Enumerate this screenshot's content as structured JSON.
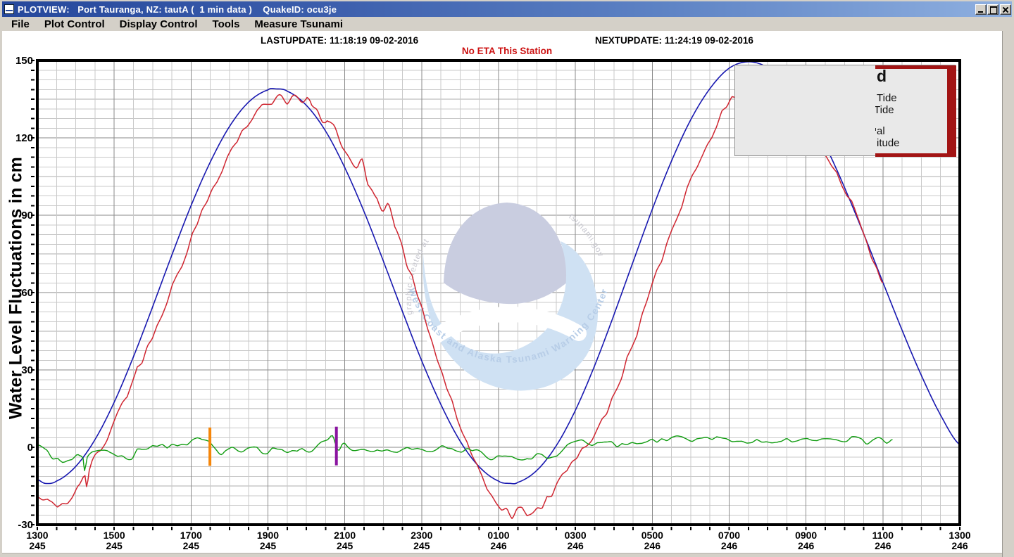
{
  "window": {
    "title": "PLOTVIEW:   Port Tauranga, NZ: tautA (  1 min data )    QuakeID: ocu3je",
    "buttons": {
      "minimize": "minimize",
      "maximize": "maximize",
      "close": "close"
    }
  },
  "menu": {
    "items": [
      "File",
      "Plot Control",
      "Display Control",
      "Tools",
      "Measure Tsunami"
    ]
  },
  "status": {
    "lastupdate": "LASTUPDATE: 11:18:19 09-02-2016",
    "nextupdate": "NEXTUPDATE: 11:24:19 09-02-2016",
    "eta": "No ETA This Station"
  },
  "chart_data": {
    "type": "line",
    "ylabel": "Water Level Fluctuations in cm",
    "ylim": [
      -30,
      150
    ],
    "y_ticks": [
      150,
      120,
      90,
      60,
      30,
      0,
      -30
    ],
    "x_hours_span": 24,
    "x_ticks": [
      {
        "time": "1300",
        "day": "245"
      },
      {
        "time": "1500",
        "day": "245"
      },
      {
        "time": "1700",
        "day": "245"
      },
      {
        "time": "1900",
        "day": "245"
      },
      {
        "time": "2100",
        "day": "245"
      },
      {
        "time": "2300",
        "day": "245"
      },
      {
        "time": "0100",
        "day": "246"
      },
      {
        "time": "0300",
        "day": "246"
      },
      {
        "time": "0500",
        "day": "246"
      },
      {
        "time": "0700",
        "day": "246"
      },
      {
        "time": "0900",
        "day": "246"
      },
      {
        "time": "1100",
        "day": "246"
      },
      {
        "time": "1300",
        "day": "246"
      }
    ],
    "grid": {
      "minor": "#c9c9c9",
      "medium": "#adadad",
      "major": "#8a8a8a",
      "border": "#000000"
    },
    "series": [
      {
        "name": "predicted-tide-curve",
        "color": "#1818b0",
        "width": 1.6,
        "noise_cm": 0,
        "points": [
          [
            0,
            -12.5
          ],
          [
            0.2,
            -14
          ],
          [
            0.5,
            -13.1
          ],
          [
            1,
            -7.4
          ],
          [
            1.5,
            3
          ],
          [
            2,
            17.5
          ],
          [
            2.5,
            35.1
          ],
          [
            3,
            54.5
          ],
          [
            3.5,
            74.5
          ],
          [
            4,
            93.7
          ],
          [
            4.5,
            110.6
          ],
          [
            5,
            124.4
          ],
          [
            5.5,
            133.9
          ],
          [
            6,
            138.6
          ],
          [
            6.2,
            139
          ],
          [
            6.5,
            138.1
          ],
          [
            7,
            132.6
          ],
          [
            7.5,
            122.6
          ],
          [
            8,
            108.4
          ],
          [
            8.5,
            91.4
          ],
          [
            9,
            72.3
          ],
          [
            9.5,
            52.7
          ],
          [
            10,
            33.6
          ],
          [
            10.5,
            16.6
          ],
          [
            11,
            2.4
          ],
          [
            11.5,
            -7.6
          ],
          [
            12,
            -13.1
          ],
          [
            12.3,
            -14
          ],
          [
            12.5,
            -13.6
          ],
          [
            13,
            -8.9
          ],
          [
            13.5,
            0.6
          ],
          [
            14,
            14.4
          ],
          [
            14.5,
            31.7
          ],
          [
            15,
            51.3
          ],
          [
            15.5,
            71.9
          ],
          [
            16,
            92.3
          ],
          [
            16.5,
            111
          ],
          [
            17,
            127
          ],
          [
            17.5,
            139.1
          ],
          [
            18,
            147
          ],
          [
            18.5,
            149.5
          ],
          [
            19,
            147.3
          ],
          [
            19.5,
            141
          ],
          [
            20,
            130.8
          ],
          [
            20.5,
            117.1
          ],
          [
            21,
            100.8
          ],
          [
            21.5,
            82.8
          ],
          [
            22,
            64
          ],
          [
            22.5,
            45.4
          ],
          [
            23,
            27.9
          ],
          [
            23.5,
            12.5
          ],
          [
            24,
            1
          ]
        ]
      },
      {
        "name": "observed-tide-curve",
        "color": "#cf2530",
        "width": 1.5,
        "noise_cm": 1.7,
        "points": [
          [
            0,
            -19.5
          ],
          [
            0.3,
            -21.5
          ],
          [
            0.6,
            -22
          ],
          [
            0.9,
            -20
          ],
          [
            1.1,
            -15
          ],
          [
            1.24,
            -10.5
          ],
          [
            1.28,
            -14.5
          ],
          [
            1.35,
            -9
          ],
          [
            1.5,
            -4
          ],
          [
            1.7,
            0.5
          ],
          [
            2,
            10
          ],
          [
            2.3,
            20
          ],
          [
            2.6,
            30
          ],
          [
            3,
            44
          ],
          [
            3.4,
            58
          ],
          [
            3.8,
            73
          ],
          [
            4.2,
            88
          ],
          [
            4.6,
            102
          ],
          [
            5,
            114
          ],
          [
            5.4,
            124
          ],
          [
            5.8,
            131
          ],
          [
            6.1,
            134
          ],
          [
            6.3,
            137.5
          ],
          [
            6.5,
            134.5
          ],
          [
            6.7,
            136
          ],
          [
            6.9,
            133
          ],
          [
            7.1,
            134.5
          ],
          [
            7.3,
            129
          ],
          [
            7.5,
            125
          ],
          [
            7.7,
            126.5
          ],
          [
            7.9,
            119
          ],
          [
            8.1,
            113
          ],
          [
            8.3,
            108
          ],
          [
            8.45,
            110.5
          ],
          [
            8.6,
            103
          ],
          [
            8.8,
            96
          ],
          [
            9,
            92
          ],
          [
            9.15,
            94
          ],
          [
            9.3,
            86
          ],
          [
            9.6,
            72
          ],
          [
            9.9,
            58
          ],
          [
            10.2,
            44
          ],
          [
            10.5,
            30
          ],
          [
            10.8,
            17
          ],
          [
            11.1,
            4
          ],
          [
            11.4,
            -7
          ],
          [
            11.7,
            -16
          ],
          [
            12,
            -22
          ],
          [
            12.2,
            -24
          ],
          [
            12.35,
            -27
          ],
          [
            12.5,
            -24.5
          ],
          [
            12.7,
            -25
          ],
          [
            12.9,
            -25.5
          ],
          [
            13.1,
            -23
          ],
          [
            13.3,
            -20
          ],
          [
            13.5,
            -15
          ],
          [
            13.7,
            -10
          ],
          [
            13.9,
            -5.5
          ],
          [
            14.1,
            -2
          ],
          [
            14.4,
            3
          ],
          [
            14.7,
            10
          ],
          [
            15,
            20
          ],
          [
            15.3,
            32
          ],
          [
            15.6,
            45
          ],
          [
            15.9,
            58
          ],
          [
            16.2,
            71
          ],
          [
            16.5,
            84
          ],
          [
            16.8,
            96
          ],
          [
            17.1,
            107
          ],
          [
            17.4,
            117
          ],
          [
            17.7,
            126
          ],
          [
            18,
            133
          ],
          [
            18.3,
            138
          ],
          [
            18.7,
            141
          ],
          [
            19,
            140.5
          ],
          [
            19.3,
            138
          ],
          [
            19.6,
            133.5
          ],
          [
            19.9,
            127
          ],
          [
            20.2,
            120.5
          ],
          [
            20.5,
            114
          ],
          [
            20.8,
            106
          ],
          [
            21.1,
            97.5
          ],
          [
            21.4,
            88
          ],
          [
            21.7,
            75
          ],
          [
            22,
            64.5
          ]
        ]
      },
      {
        "name": "residual-curve",
        "color": "#109c10",
        "width": 1.4,
        "noise_cm": 1.0,
        "points": [
          [
            0,
            0.5
          ],
          [
            0.2,
            -1.5
          ],
          [
            0.45,
            -4.5
          ],
          [
            0.7,
            -5
          ],
          [
            0.9,
            -4
          ],
          [
            1.1,
            -3.5
          ],
          [
            1.19,
            -3.8
          ],
          [
            1.23,
            -8.5
          ],
          [
            1.3,
            -3
          ],
          [
            1.5,
            -1.5
          ],
          [
            1.7,
            -1
          ],
          [
            1.9,
            -2
          ],
          [
            2.2,
            -3
          ],
          [
            2.45,
            -4
          ],
          [
            2.6,
            -1.5
          ],
          [
            2.8,
            -0.5
          ],
          [
            3,
            0
          ],
          [
            3.3,
            0.5
          ],
          [
            3.6,
            0.5
          ],
          [
            3.9,
            1
          ],
          [
            4.2,
            3
          ],
          [
            4.45,
            2
          ],
          [
            4.6,
            -0.5
          ],
          [
            4.75,
            -2.5
          ],
          [
            4.9,
            -1
          ],
          [
            5.1,
            -0.5
          ],
          [
            5.3,
            -1.5
          ],
          [
            5.6,
            -0.5
          ],
          [
            5.9,
            -1.8
          ],
          [
            6.2,
            -1
          ],
          [
            6.5,
            -2
          ],
          [
            6.8,
            -0.5
          ],
          [
            7.1,
            -1.5
          ],
          [
            7.35,
            1.5
          ],
          [
            7.55,
            2.5
          ],
          [
            7.68,
            5
          ],
          [
            7.78,
            1
          ],
          [
            7.85,
            -1
          ],
          [
            8,
            1.5
          ],
          [
            8.2,
            -1
          ],
          [
            8.5,
            -0.5
          ],
          [
            8.8,
            -1.5
          ],
          [
            9.1,
            -0.5
          ],
          [
            9.4,
            -1.2
          ],
          [
            9.7,
            -0.5
          ],
          [
            10,
            -0.6
          ],
          [
            10.3,
            -1
          ],
          [
            10.6,
            0
          ],
          [
            10.9,
            -1
          ],
          [
            11.2,
            -1
          ],
          [
            11.5,
            -2
          ],
          [
            11.8,
            -5
          ],
          [
            12.1,
            -3
          ],
          [
            12.4,
            -4.5
          ],
          [
            12.7,
            -5.5
          ],
          [
            13,
            -3.5
          ],
          [
            13.3,
            -4
          ],
          [
            13.6,
            -2.5
          ],
          [
            13.9,
            1.5
          ],
          [
            14.2,
            2.5
          ],
          [
            14.5,
            1
          ],
          [
            14.8,
            2
          ],
          [
            15.1,
            0.5
          ],
          [
            15.4,
            1
          ],
          [
            15.8,
            2.5
          ],
          [
            16.2,
            3
          ],
          [
            16.6,
            3.8
          ],
          [
            17,
            2.5
          ],
          [
            17.4,
            3.5
          ],
          [
            17.8,
            3
          ],
          [
            18.2,
            2
          ],
          [
            18.6,
            2.5
          ],
          [
            19,
            2
          ],
          [
            19.4,
            3
          ],
          [
            19.8,
            2.5
          ],
          [
            20.2,
            3
          ],
          [
            20.6,
            3.5
          ],
          [
            21,
            2.5
          ],
          [
            21.3,
            3.5
          ],
          [
            21.6,
            2
          ],
          [
            21.9,
            3
          ],
          [
            22.1,
            1.5
          ],
          [
            22.25,
            2.2
          ]
        ]
      }
    ],
    "markers": [
      {
        "name": "orange-time-marker",
        "color": "#f5860a",
        "t": 4.49,
        "v_range": [
          -7.2,
          7.7
        ]
      },
      {
        "name": "purple-time-marker",
        "color": "#8a14a0",
        "t": 7.78,
        "v_range": [
          -7,
          8
        ]
      }
    ],
    "legend": {
      "fragments": [
        "d",
        "Tide",
        "Tide",
        "al",
        "itude"
      ],
      "bg": "#e9e9e9",
      "accent": "#a21414"
    },
    "watermark": {
      "arc_text": "West Coast and Alaska Tsunami Warning Center",
      "side_text_left": "graphic created at",
      "side_text_right": "tsunami.gov",
      "colors": {
        "dome": "#c9cde0",
        "wave": "#cfe1f3",
        "arc_text": "#b7cde7",
        "side_text": "#c8c8d0"
      }
    }
  }
}
